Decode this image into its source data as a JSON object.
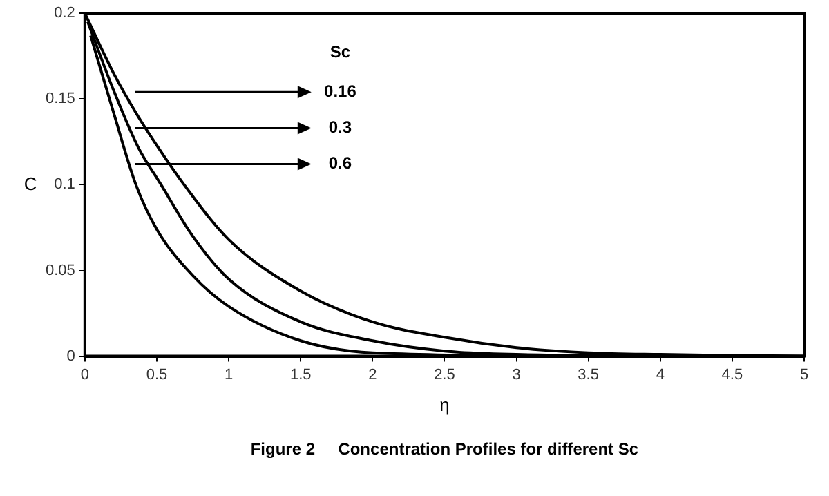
{
  "chart_data": {
    "type": "line",
    "title": "Figure 2     Concentration Profiles for different Sc",
    "xlabel": "η",
    "ylabel": "C",
    "legend_title": "Sc",
    "legend": "top",
    "grid": false,
    "marker": "none",
    "line_style": "solid",
    "xlim": [
      0,
      5
    ],
    "xticks": [
      0,
      0.5,
      1,
      1.5,
      2,
      2.5,
      3,
      3.5,
      4,
      4.5,
      5
    ],
    "ylim": [
      0,
      0.2
    ],
    "yticks": [
      0,
      0.05,
      0.1,
      0.15,
      0.2
    ],
    "series": [
      {
        "name": "0.16",
        "color": "#000000",
        "x": [
          0,
          0.2,
          0.355,
          0.5,
          0.69,
          1,
          1.5,
          2,
          2.5,
          3,
          3.5,
          4,
          5
        ],
        "values": [
          0.2,
          0.165,
          0.142,
          0.123,
          0.1,
          0.068,
          0.038,
          0.02,
          0.011,
          0.005,
          0.002,
          0.001,
          0
        ]
      },
      {
        "name": "0.3",
        "color": "#000000",
        "x": [
          0.02,
          0.2,
          0.37,
          0.53,
          0.75,
          1,
          1.5,
          2,
          2.5,
          3,
          4.5
        ],
        "values": [
          0.195,
          0.155,
          0.122,
          0.1,
          0.07,
          0.045,
          0.02,
          0.009,
          0.003,
          0.001,
          0
        ]
      },
      {
        "name": "0.6",
        "color": "#000000",
        "x": [
          0.04,
          0.2,
          0.355,
          0.5,
          0.75,
          1,
          1.5,
          2,
          3.5
        ],
        "values": [
          0.187,
          0.142,
          0.1,
          0.074,
          0.047,
          0.029,
          0.009,
          0.002,
          0
        ]
      }
    ]
  }
}
